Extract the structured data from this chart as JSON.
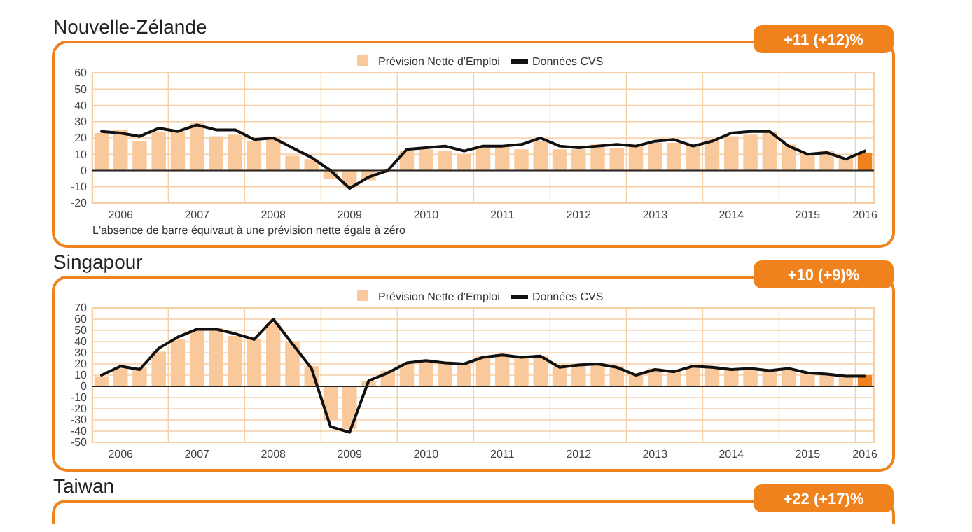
{
  "chart_data": [
    {
      "type": "bar",
      "title": "Nouvelle-Zélande",
      "categories": [
        null,
        "2006",
        null,
        null,
        null,
        "2007",
        null,
        null,
        null,
        "2008",
        null,
        null,
        null,
        "2009",
        null,
        null,
        null,
        "2010",
        null,
        null,
        null,
        "2011",
        null,
        null,
        null,
        "2012",
        null,
        null,
        null,
        "2013",
        null,
        null,
        null,
        "2014",
        null,
        null,
        null,
        "2015",
        null,
        null,
        "2016"
      ],
      "series": [
        {
          "name": "Prévision Nette d'Emploi",
          "type": "bar",
          "color": "#f9c89b",
          "colors": [
            "#f9c89b",
            "#f9c89b",
            "#f9c89b",
            "#f9c89b",
            "#f9c89b",
            "#f9c89b",
            "#f9c89b",
            "#f9c89b",
            "#f9c89b",
            "#f9c89b",
            "#f9c89b",
            "#f9c89b",
            "#f9c89b",
            "#f9c89b",
            "#f9c89b",
            "#f9c89b",
            "#f9c89b",
            "#f9c89b",
            "#f9c89b",
            "#f9c89b",
            "#f9c89b",
            "#f9c89b",
            "#f9c89b",
            "#f9c89b",
            "#f9c89b",
            "#f9c89b",
            "#f9c89b",
            "#f9c89b",
            "#f9c89b",
            "#f9c89b",
            "#f9c89b",
            "#f9c89b",
            "#f9c89b",
            "#f9c89b",
            "#f9c89b",
            "#f9c89b",
            "#f9c89b",
            "#f9c89b",
            "#f9c89b",
            "#f9c89b",
            "#f0821e"
          ],
          "values": [
            23,
            25,
            18,
            24,
            24,
            29,
            21,
            22,
            18,
            21,
            9,
            7,
            -5,
            -10,
            -6,
            1,
            12,
            13,
            12,
            10,
            14,
            15,
            13,
            18,
            13,
            13,
            16,
            14,
            15,
            17,
            17,
            16,
            19,
            21,
            22,
            24,
            16,
            11,
            12,
            8,
            11
          ]
        },
        {
          "name": "Données CVS",
          "type": "line",
          "color": "#111111",
          "values": [
            24,
            23,
            21,
            26,
            24,
            28,
            25,
            25,
            19,
            20,
            14,
            8,
            0,
            -11,
            -4,
            0,
            13,
            14,
            15,
            12,
            15,
            15,
            16,
            20,
            15,
            14,
            15,
            16,
            15,
            18,
            19,
            15,
            18,
            23,
            24,
            24,
            15,
            10,
            11,
            7,
            12
          ]
        }
      ],
      "ylim": [
        -20,
        60
      ],
      "yticks": [
        -20,
        -10,
        0,
        10,
        20,
        30,
        40,
        50,
        60
      ],
      "grid": true,
      "legend": "top",
      "annotations": [
        "+11 (+12)%",
        "L'absence de barre équivaut à une prévision nette égale à zéro"
      ]
    },
    {
      "type": "bar",
      "title": "Singapour",
      "categories": [
        null,
        "2006",
        null,
        null,
        null,
        "2007",
        null,
        null,
        null,
        "2008",
        null,
        null,
        null,
        "2009",
        null,
        null,
        null,
        "2010",
        null,
        null,
        null,
        "2011",
        null,
        null,
        null,
        "2012",
        null,
        null,
        null,
        "2013",
        null,
        null,
        null,
        "2014",
        null,
        null,
        null,
        "2015",
        null,
        null,
        "2016"
      ],
      "series": [
        {
          "name": "Prévision Nette d'Emploi",
          "type": "bar",
          "color": "#f9c89b",
          "colors": [
            "#f9c89b",
            "#f9c89b",
            "#f9c89b",
            "#f9c89b",
            "#f9c89b",
            "#f9c89b",
            "#f9c89b",
            "#f9c89b",
            "#f9c89b",
            "#f9c89b",
            "#f9c89b",
            "#f9c89b",
            "#f9c89b",
            "#f9c89b",
            "#f9c89b",
            "#f9c89b",
            "#f9c89b",
            "#f9c89b",
            "#f9c89b",
            "#f9c89b",
            "#f9c89b",
            "#f9c89b",
            "#f9c89b",
            "#f9c89b",
            "#f9c89b",
            "#f9c89b",
            "#f9c89b",
            "#f9c89b",
            "#f9c89b",
            "#f9c89b",
            "#f9c89b",
            "#f9c89b",
            "#f9c89b",
            "#f9c89b",
            "#f9c89b",
            "#f9c89b",
            "#f9c89b",
            "#f9c89b",
            "#f9c89b",
            "#f9c89b",
            "#f0821e"
          ],
          "values": [
            9,
            16,
            17,
            31,
            42,
            50,
            52,
            45,
            42,
            57,
            40,
            18,
            -30,
            -38,
            5,
            14,
            20,
            24,
            22,
            19,
            27,
            29,
            27,
            27,
            19,
            20,
            21,
            18,
            12,
            16,
            14,
            17,
            18,
            16,
            17,
            15,
            15,
            13,
            12,
            10,
            10
          ]
        },
        {
          "name": "Données CVS",
          "type": "line",
          "color": "#111111",
          "values": [
            10,
            18,
            15,
            34,
            44,
            51,
            51,
            47,
            42,
            60,
            38,
            16,
            -36,
            -41,
            5,
            12,
            21,
            23,
            21,
            20,
            26,
            28,
            26,
            27,
            17,
            19,
            20,
            17,
            10,
            15,
            13,
            18,
            17,
            15,
            16,
            14,
            16,
            12,
            11,
            9,
            9
          ]
        }
      ],
      "ylim": [
        -50,
        70
      ],
      "yticks": [
        -50,
        -40,
        -30,
        -20,
        -10,
        0,
        10,
        20,
        30,
        40,
        50,
        60,
        70
      ],
      "grid": true,
      "legend": "top",
      "annotations": [
        "+10 (+9)%"
      ]
    },
    {
      "type": "other",
      "title": "Taiwan",
      "annotations": [
        "+22 (+17)%"
      ]
    }
  ]
}
